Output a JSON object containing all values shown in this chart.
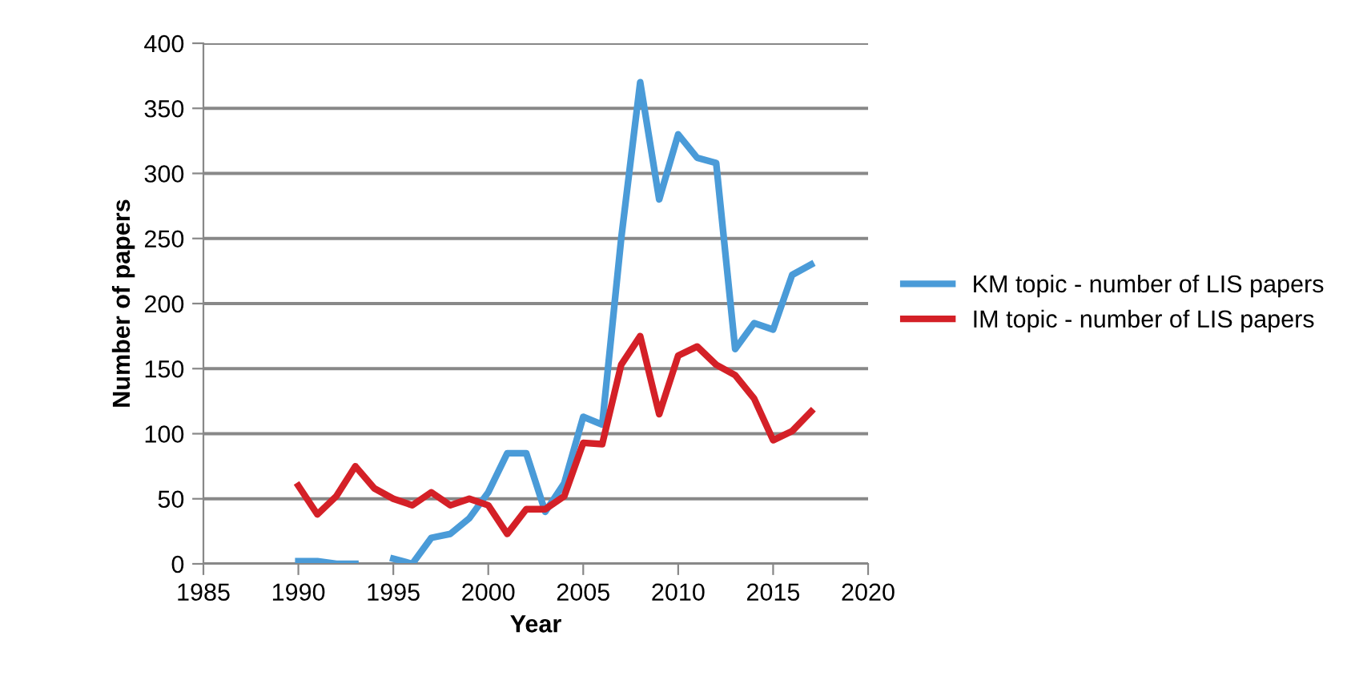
{
  "chart_data": {
    "type": "line",
    "xlabel": "Year",
    "ylabel": "Number of papers",
    "x": [
      1990,
      1991,
      1992,
      1993,
      1994,
      1995,
      1996,
      1997,
      1998,
      1999,
      2000,
      2001,
      2002,
      2003,
      2004,
      2005,
      2006,
      2007,
      2008,
      2009,
      2010,
      2011,
      2012,
      2013,
      2014,
      2015,
      2016,
      2017
    ],
    "series": [
      {
        "name": "KM topic - number of LIS papers",
        "color": "#4a9bd8",
        "values": [
          2,
          2,
          0,
          0,
          null,
          4,
          0,
          20,
          23,
          35,
          55,
          85,
          85,
          40,
          62,
          113,
          107,
          250,
          370,
          280,
          330,
          312,
          308,
          165,
          185,
          180,
          222,
          230
        ]
      },
      {
        "name": "IM topic - number of LIS papers",
        "color": "#d42027",
        "values": [
          60,
          38,
          52,
          75,
          58,
          50,
          45,
          55,
          45,
          50,
          45,
          23,
          42,
          42,
          52,
          93,
          92,
          153,
          175,
          115,
          160,
          167,
          153,
          145,
          127,
          95,
          102,
          117
        ]
      }
    ],
    "xlim": [
      1985,
      2020
    ],
    "xticks": [
      1985,
      1990,
      1995,
      2000,
      2005,
      2010,
      2015,
      2020
    ],
    "ylim": [
      0,
      400
    ],
    "yticks": [
      0,
      50,
      100,
      150,
      200,
      250,
      300,
      350,
      400
    ],
    "grid": "y",
    "legend": "right",
    "marker": "none",
    "line_style": "solid"
  }
}
